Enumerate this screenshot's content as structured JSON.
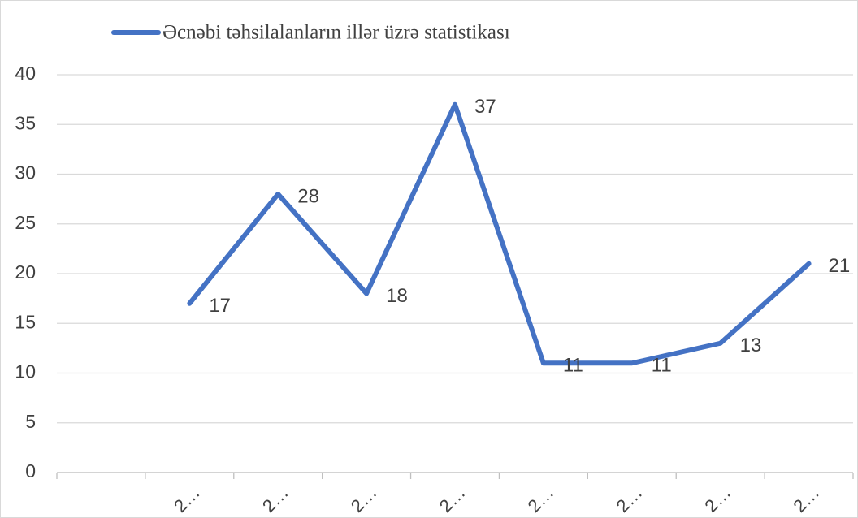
{
  "chart_data": {
    "type": "line",
    "categories": [
      null,
      "2…",
      "2…",
      "2…",
      "2…",
      "2…",
      "2…",
      "2…",
      "2…"
    ],
    "series": [
      {
        "name": "Əcnəbi təhsilalanların illər üzrə statistikası",
        "color": "#4472c4",
        "values": [
          null,
          17,
          28,
          18,
          37,
          11,
          11,
          13,
          21
        ]
      }
    ],
    "ylim": [
      0,
      40
    ],
    "yticks": [
      0,
      5,
      10,
      15,
      20,
      25,
      30,
      35,
      40
    ],
    "grid": true,
    "legend": "top"
  }
}
